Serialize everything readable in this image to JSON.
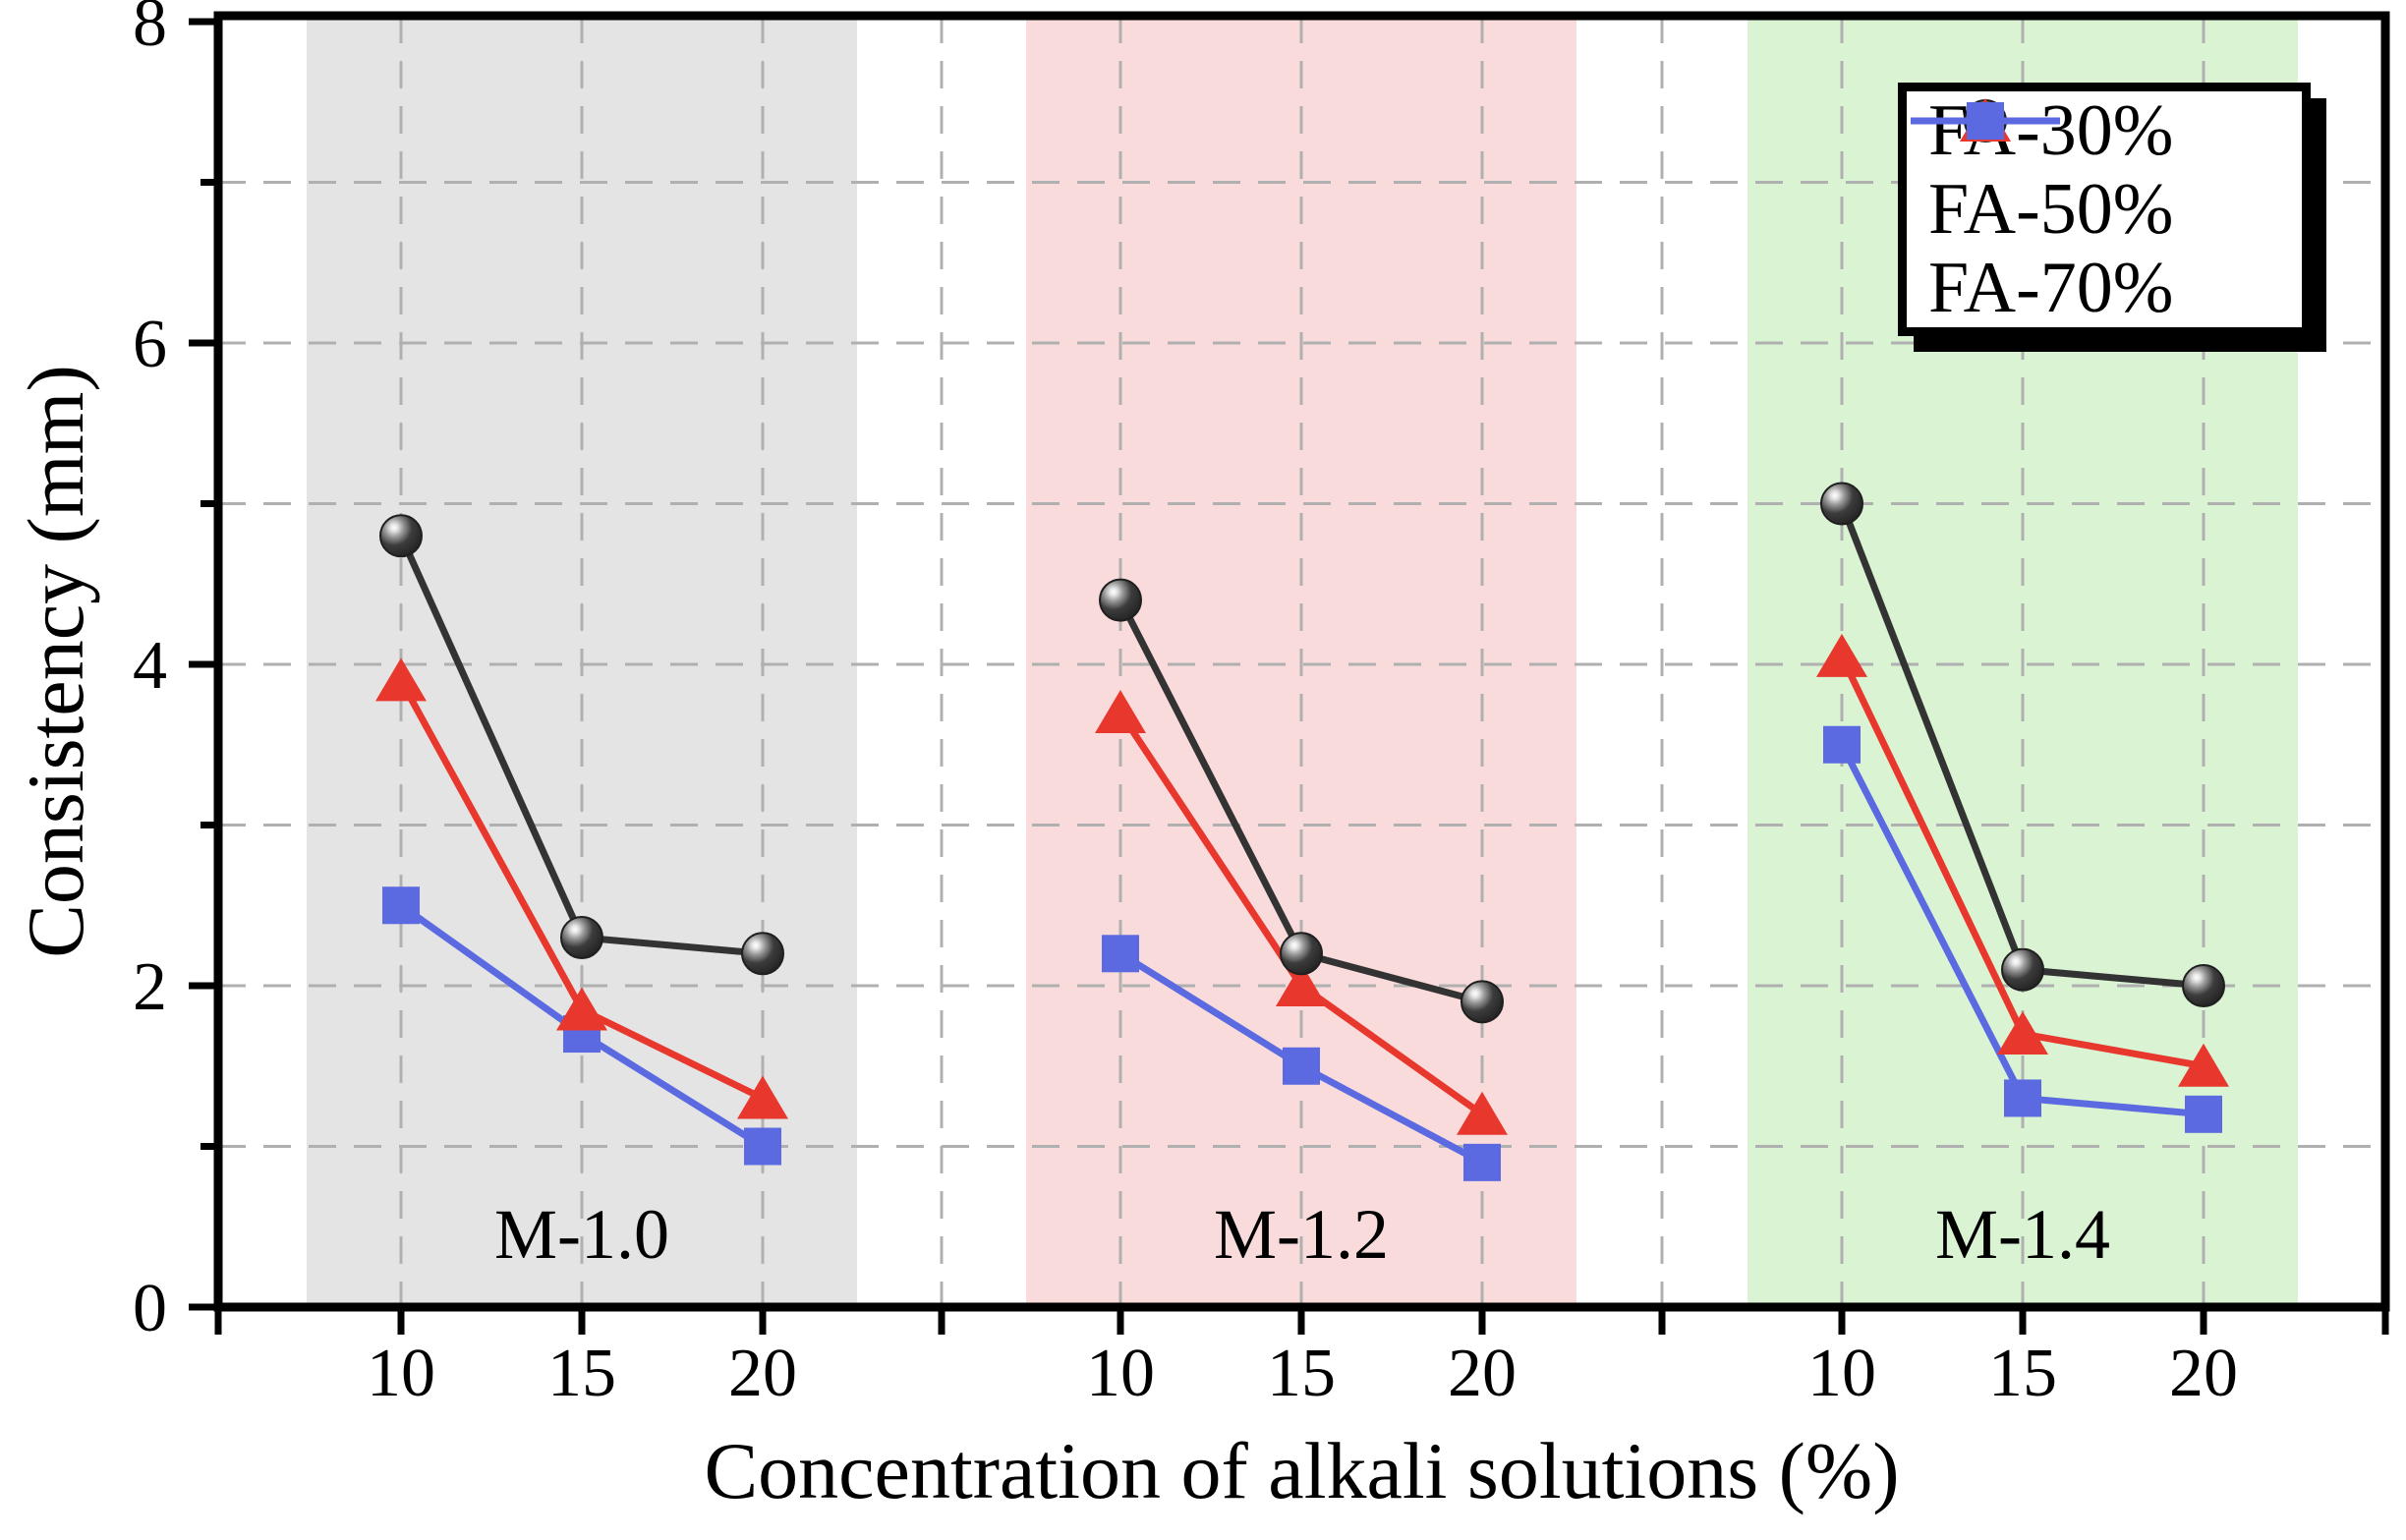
{
  "axes": {
    "ylabel": "Consistency (mm)",
    "xlabel": "Concentration of alkali solutions (%)"
  },
  "chart_data": {
    "type": "line",
    "title": "",
    "xlabel": "Concentration of alkali solutions (%)",
    "ylabel": "Consistency (mm)",
    "ylim": [
      0,
      8
    ],
    "yticks": [
      0,
      2,
      4,
      6,
      8
    ],
    "y_minor_gridlines": [
      1,
      2,
      3,
      4,
      5,
      6,
      7
    ],
    "grid": "dashed",
    "legend_position": "top-right",
    "groups": [
      {
        "label": "M-1.0",
        "band_color": "#e4e4e4",
        "x": [
          "10",
          "15",
          "20"
        ]
      },
      {
        "label": "M-1.2",
        "band_color": "#fadbdb",
        "x": [
          "10",
          "15",
          "20"
        ]
      },
      {
        "label": "M-1.4",
        "band_color": "#d9f3d3",
        "x": [
          "10",
          "15",
          "20"
        ]
      }
    ],
    "series": [
      {
        "name": "FA-30%",
        "marker": "sphere",
        "color": "#333333",
        "values": [
          [
            4.8,
            2.3,
            2.2
          ],
          [
            4.4,
            2.2,
            1.9
          ],
          [
            5.0,
            2.1,
            2.0
          ]
        ]
      },
      {
        "name": "FA-50%",
        "marker": "triangle",
        "color": "#e8382e",
        "values": [
          [
            3.9,
            1.85,
            1.3
          ],
          [
            3.7,
            2.0,
            1.2
          ],
          [
            4.05,
            1.7,
            1.5
          ]
        ]
      },
      {
        "name": "FA-70%",
        "marker": "square",
        "color": "#5b6ae1",
        "values": [
          [
            2.5,
            1.7,
            1.0
          ],
          [
            2.2,
            1.5,
            0.9
          ],
          [
            3.5,
            1.3,
            1.2
          ]
        ]
      }
    ],
    "gridline_color": "#b0b0b0",
    "axis_color": "#000000"
  }
}
